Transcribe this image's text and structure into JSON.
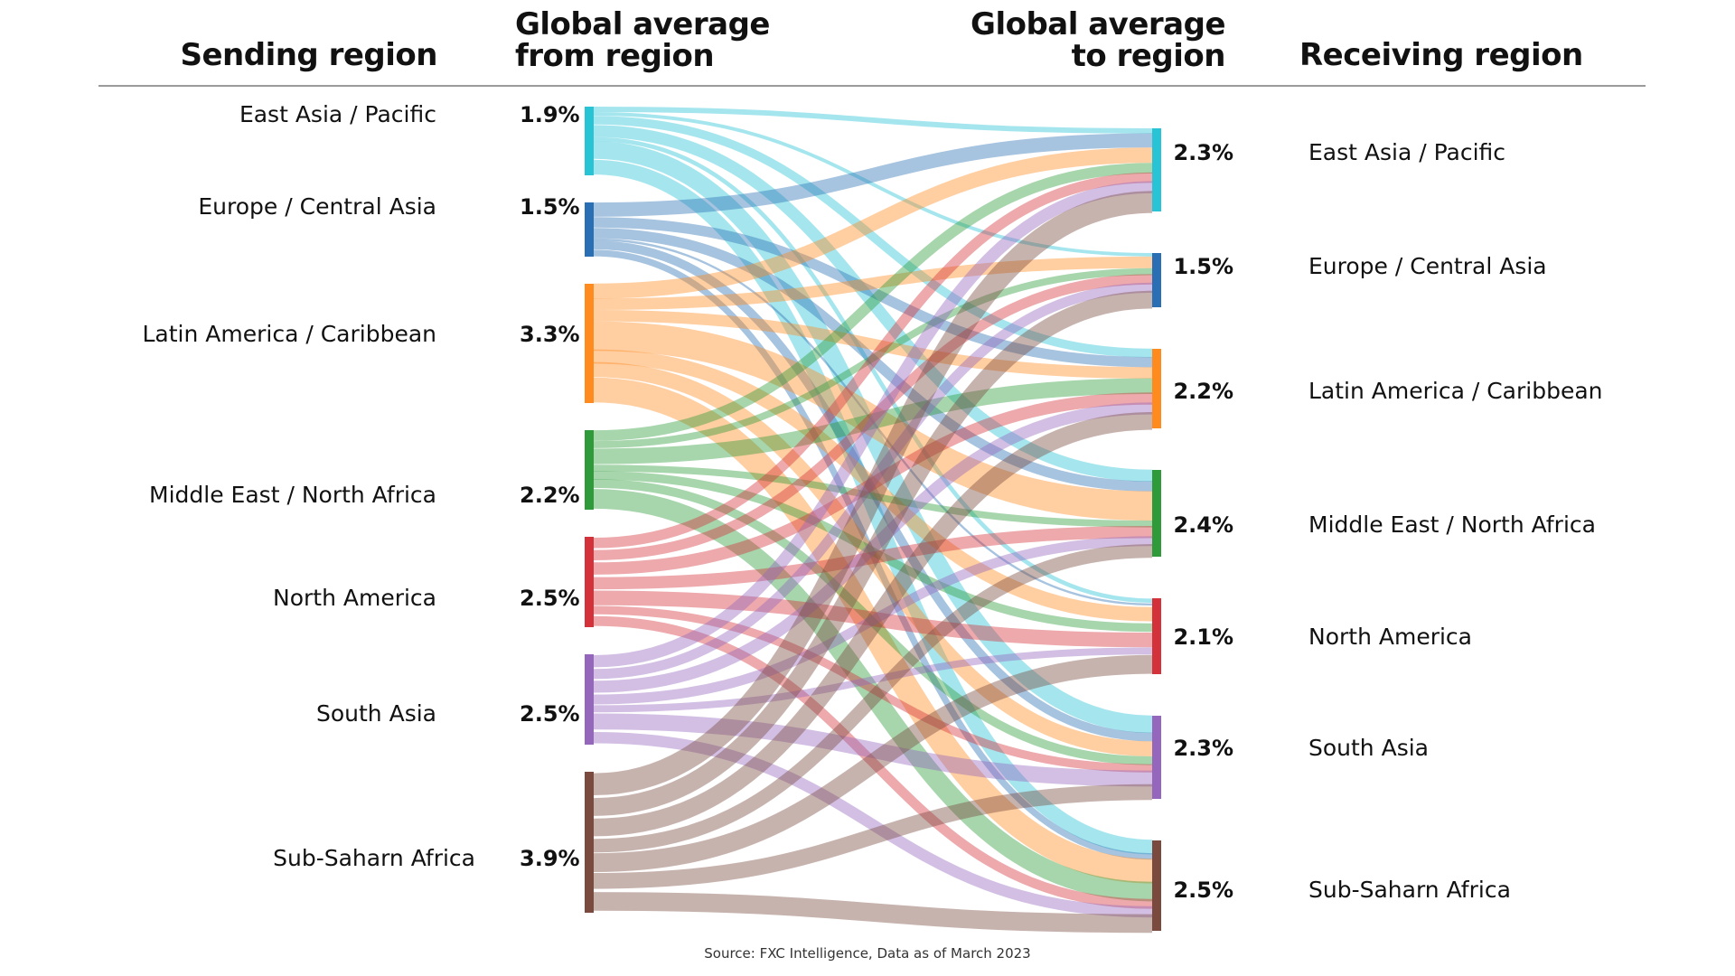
{
  "chart_data": {
    "type": "sankey",
    "title": "",
    "headers": {
      "sending_region": "Sending region",
      "global_avg_from": [
        "Global average",
        "from region"
      ],
      "global_avg_to": [
        "Global average",
        "to region"
      ],
      "receiving_region": "Receiving region"
    },
    "sending": [
      {
        "name": "East Asia / Pacific",
        "value_label": "1.9%",
        "value": 1.9,
        "color": "#29c3d6"
      },
      {
        "name": "Europe / Central Asia",
        "value_label": "1.5%",
        "value": 1.5,
        "color": "#2a6fb3"
      },
      {
        "name": "Latin America / Caribbean",
        "value_label": "3.3%",
        "value": 3.3,
        "color": "#ff8a1e"
      },
      {
        "name": "Middle East / North Africa",
        "value_label": "2.2%",
        "value": 2.2,
        "color": "#2e9a3a"
      },
      {
        "name": "North America",
        "value_label": "2.5%",
        "value": 2.5,
        "color": "#d3323a"
      },
      {
        "name": "South Asia",
        "value_label": "2.5%",
        "value": 2.5,
        "color": "#9467bd"
      },
      {
        "name": "Sub-Saharn Africa",
        "value_label": "3.9%",
        "value": 3.9,
        "color": "#7a4a3e"
      }
    ],
    "receiving": [
      {
        "name": "East Asia / Pacific",
        "value_label": "2.3%",
        "value": 2.3,
        "color": "#29c3d6"
      },
      {
        "name": "Europe / Central Asia",
        "value_label": "1.5%",
        "value": 1.5,
        "color": "#2a6fb3"
      },
      {
        "name": "Latin America / Caribbean",
        "value_label": "2.2%",
        "value": 2.2,
        "color": "#ff8a1e"
      },
      {
        "name": "Middle East / North Africa",
        "value_label": "2.4%",
        "value": 2.4,
        "color": "#2e9a3a"
      },
      {
        "name": "North America",
        "value_label": "2.1%",
        "value": 2.1,
        "color": "#d3323a"
      },
      {
        "name": "South Asia",
        "value_label": "2.3%",
        "value": 2.3,
        "color": "#9467bd"
      },
      {
        "name": "Sub-Saharn Africa",
        "value_label": "2.5%",
        "value": 2.5,
        "color": "#7a4a3e"
      }
    ],
    "link_matrix_note": "rows = sending region, columns = receiving region (relative flow widths, estimated)",
    "links": [
      [
        0.15,
        0.1,
        0.25,
        0.35,
        0.1,
        0.5,
        0.45
      ],
      [
        0.4,
        0.0,
        0.3,
        0.3,
        0.05,
        0.25,
        0.2
      ],
      [
        0.45,
        0.35,
        0.35,
        0.9,
        0.35,
        0.45,
        0.8
      ],
      [
        0.3,
        0.2,
        0.45,
        0.2,
        0.2,
        0.25,
        0.6
      ],
      [
        0.25,
        0.25,
        0.3,
        0.3,
        0.3,
        0.2,
        0.25
      ],
      [
        0.3,
        0.25,
        0.3,
        0.25,
        0.15,
        0.4,
        0.3
      ],
      [
        0.55,
        0.45,
        0.45,
        0.35,
        0.4,
        0.4,
        0.5
      ]
    ]
  },
  "source": "Source: FXC Intelligence, Data as of March 2023"
}
